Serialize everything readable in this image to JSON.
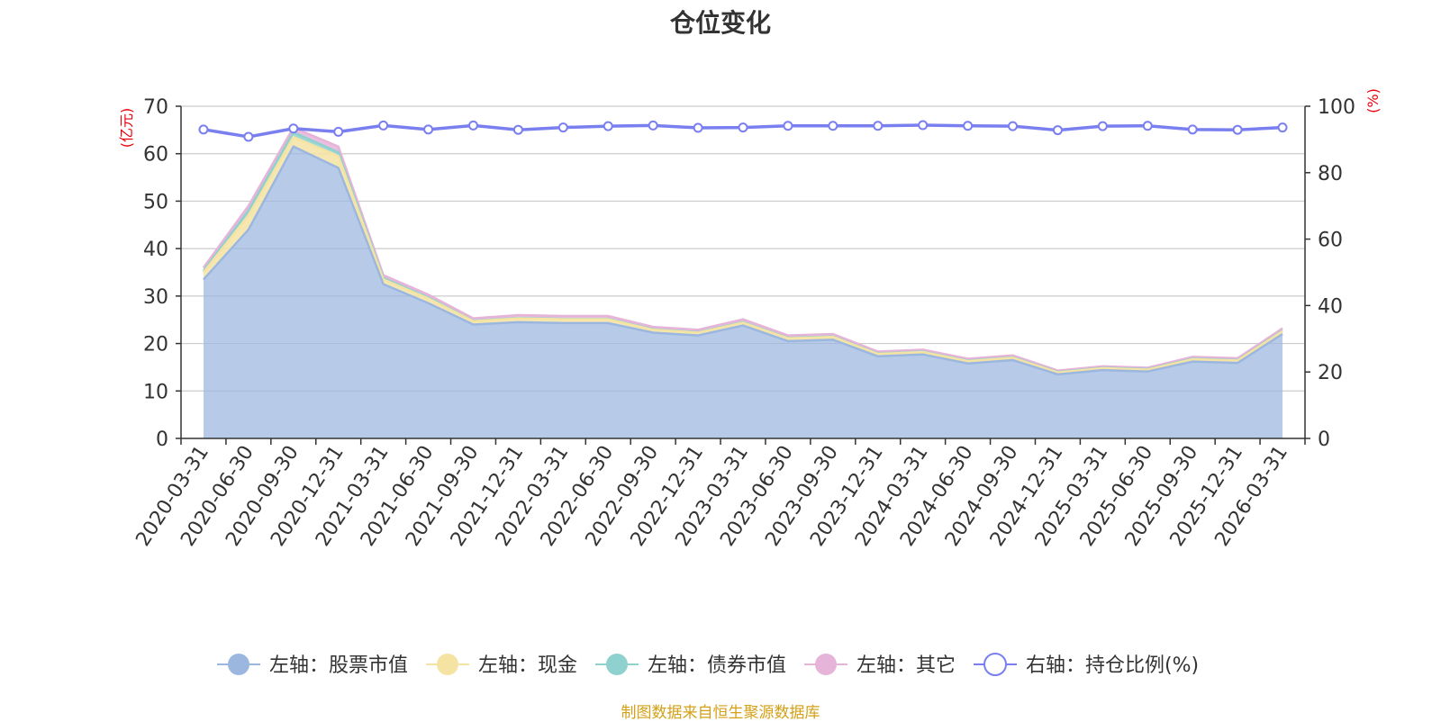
{
  "chart_data": {
    "type": "area",
    "title": "仓位变化",
    "source_note": "制图数据来自恒生聚源数据库",
    "left_axis": {
      "unit_label": "(亿元)",
      "ylim": [
        0,
        70
      ],
      "ticks": [
        "0",
        "10",
        "20",
        "30",
        "40",
        "50",
        "60",
        "70"
      ]
    },
    "right_axis": {
      "unit_label": "(%)",
      "ylim": [
        0,
        100
      ],
      "ticks": [
        "0",
        "20",
        "40",
        "60",
        "80",
        "100"
      ]
    },
    "grid": true,
    "legend_position": "bottom",
    "categories": [
      "2020-03-31",
      "2020-06-30",
      "2020-09-30",
      "2020-12-31",
      "2021-03-31",
      "2021-06-30",
      "2021-09-30",
      "2021-12-31",
      "2022-03-31",
      "2022-06-30",
      "2022-09-30",
      "2022-12-31",
      "2023-03-31",
      "2023-06-30",
      "2023-09-30",
      "2023-12-31",
      "2024-03-31",
      "2024-06-30",
      "2024-09-30",
      "2024-12-31",
      "2025-03-31",
      "2025-06-30",
      "2025-09-30",
      "2025-12-31",
      "2026-03-31"
    ],
    "series": [
      {
        "name": "左轴：股票市值",
        "axis": "left",
        "stacked": true,
        "color": "#9bb7e0",
        "values": [
          33.5,
          44.0,
          61.5,
          57.0,
          32.5,
          28.5,
          24.0,
          24.5,
          24.3,
          24.3,
          22.3,
          21.7,
          23.8,
          20.5,
          20.8,
          17.3,
          17.7,
          15.8,
          16.5,
          13.5,
          14.4,
          14.1,
          16.2,
          15.9,
          22.0
        ]
      },
      {
        "name": "左轴：现金",
        "axis": "left",
        "stacked": true,
        "color": "#f5e3a3",
        "values": [
          1.5,
          3.0,
          2.0,
          2.5,
          1.0,
          1.0,
          0.7,
          0.8,
          0.8,
          0.8,
          0.6,
          0.6,
          0.6,
          0.6,
          0.6,
          0.5,
          0.5,
          0.5,
          0.5,
          0.4,
          0.4,
          0.4,
          0.5,
          0.5,
          0.6
        ]
      },
      {
        "name": "左轴：债券市值",
        "axis": "left",
        "stacked": true,
        "color": "#8fd1cf",
        "values": [
          0.3,
          1.0,
          1.0,
          0.8,
          0.3,
          0.2,
          0.1,
          0.1,
          0.1,
          0.1,
          0.1,
          0.1,
          0.1,
          0.1,
          0.1,
          0.1,
          0.1,
          0.1,
          0.1,
          0.1,
          0.1,
          0.1,
          0.1,
          0.1,
          0.1
        ]
      },
      {
        "name": "左轴：其它",
        "axis": "left",
        "stacked": true,
        "color": "#e6b3d9",
        "values": [
          0.7,
          1.0,
          1.0,
          1.2,
          0.6,
          0.6,
          0.5,
          0.6,
          0.6,
          0.6,
          0.5,
          0.5,
          0.6,
          0.5,
          0.5,
          0.4,
          0.4,
          0.4,
          0.4,
          0.3,
          0.3,
          0.3,
          0.4,
          0.4,
          0.5
        ]
      },
      {
        "name": "右轴：持仓比例(%)",
        "axis": "right",
        "type": "line",
        "color": "#7a7ff0",
        "values": [
          93.0,
          90.8,
          93.3,
          92.3,
          94.2,
          93.0,
          94.2,
          92.9,
          93.6,
          94.0,
          94.2,
          93.5,
          93.6,
          94.1,
          94.1,
          94.1,
          94.3,
          94.1,
          94.0,
          92.8,
          94.0,
          94.1,
          93.0,
          92.9,
          93.6
        ]
      }
    ]
  }
}
